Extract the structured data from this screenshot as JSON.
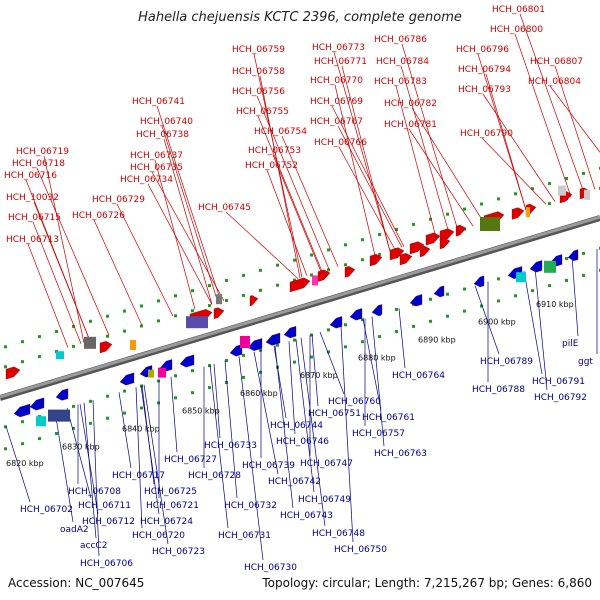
{
  "title": "Hahella chejuensis KCTC 2396, complete genome",
  "footer": {
    "accession": "Accession: NC_007645",
    "summary": "Topology: circular; Length: 7,215,267 bp; Genes: 6,860"
  },
  "colors": {
    "forward": "#dd0000",
    "reverse": "#0000cc",
    "axis": "#9a9a9a",
    "ticks": "#229922",
    "label_top": "#cc0000",
    "label_bottom": "#00008b"
  },
  "scale_labels": [
    "6820 kbp",
    "6830 kbp",
    "6840 kbp",
    "6850 kbp",
    "6860 kbp",
    "6870 kbp",
    "6880 kbp",
    "6890 kbp",
    "6900 kbp",
    "6910 kbp"
  ],
  "top_labels": [
    "HCH_06713",
    "HCH_06715",
    "HCH_10032",
    "HCH_06716",
    "HCH_06718",
    "HCH_06719",
    "HCH_06726",
    "HCH_06729",
    "HCH_06734",
    "HCH_06735",
    "HCH_06737",
    "HCH_06738",
    "HCH_06740",
    "HCH_06741",
    "HCH_06745",
    "HCH_06752",
    "HCH_06753",
    "HCH_06754",
    "HCH_06755",
    "HCH_06756",
    "HCH_06758",
    "HCH_06759",
    "HCH_06766",
    "HCH_06767",
    "HCH_06769",
    "HCH_06770",
    "HCH_06771",
    "HCH_06773",
    "HCH_06781",
    "HCH_06782",
    "HCH_06783",
    "HCH_06784",
    "HCH_06786",
    "HCH_06790",
    "HCH_06793",
    "HCH_06794",
    "HCH_06796",
    "HCH_06800",
    "HCH_06801",
    "HCH_06804",
    "HCH_06807"
  ],
  "bottom_labels": [
    "HCH_06702",
    "oadA2",
    "accC2",
    "HCH_06706",
    "HCH_06708",
    "HCH_06711",
    "HCH_06712",
    "HCH_06717",
    "HCH_06720",
    "HCH_06721",
    "HCH_06723",
    "HCH_06724",
    "HCH_06725",
    "HCH_06727",
    "HCH_06728",
    "HCH_06730",
    "HCH_06731",
    "HCH_06732",
    "HCH_06733",
    "HCH_06739",
    "HCH_06742",
    "HCH_06743",
    "HCH_06744",
    "HCH_06746",
    "HCH_06747",
    "HCH_06748",
    "HCH_06749",
    "HCH_06750",
    "HCH_06751",
    "HCH_06757",
    "HCH_06760",
    "HCH_06761",
    "HCH_06763",
    "HCH_06764",
    "HCH_06788",
    "HCH_06789",
    "HCH_06791",
    "HCH_06792",
    "pilE",
    "ggt"
  ]
}
